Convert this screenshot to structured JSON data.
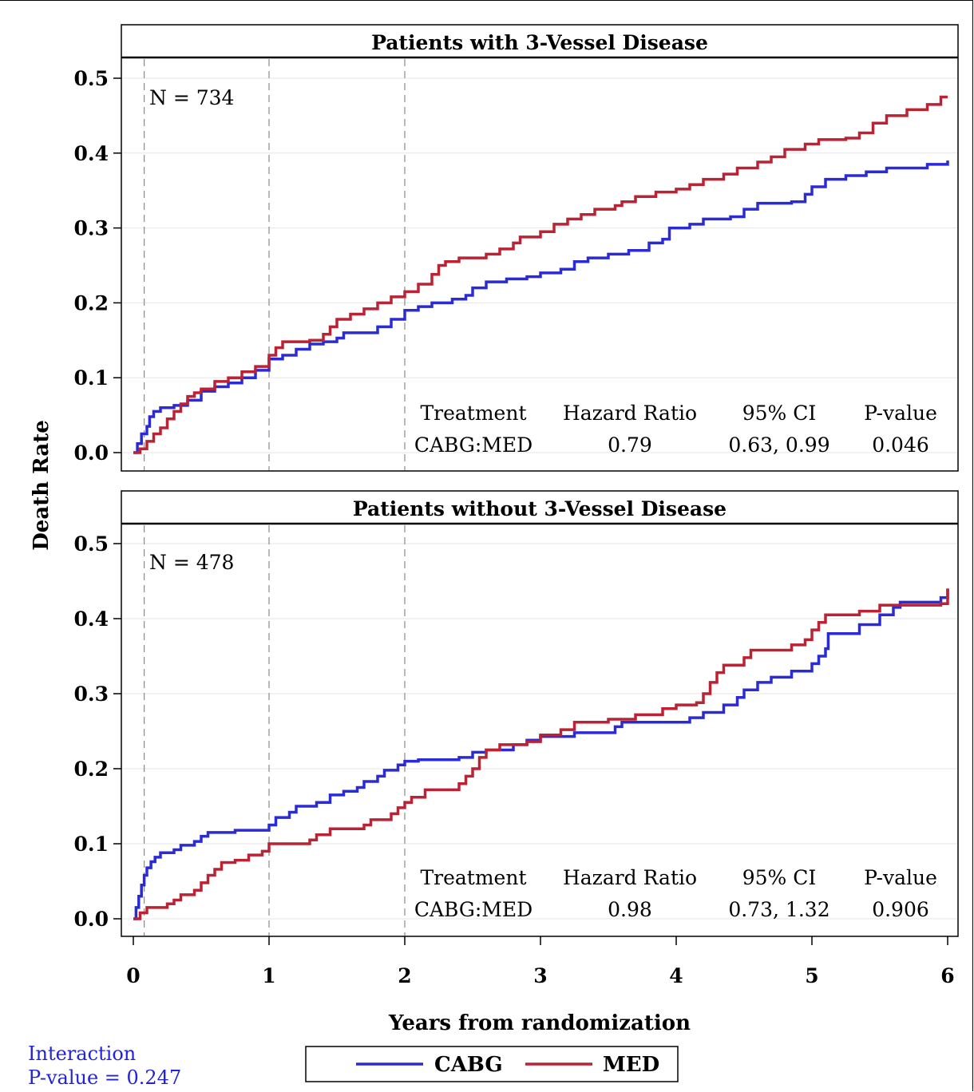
{
  "chart_data": [
    {
      "type": "line",
      "title": "Patients with 3-Vessel Disease",
      "xlabel": "Years from randomization",
      "ylabel": "Death Rate",
      "xlim": [
        0,
        6
      ],
      "ylim": [
        0,
        0.52
      ],
      "x_ticks": [
        "0",
        "1",
        "2",
        "3",
        "4",
        "5",
        "6"
      ],
      "y_ticks": [
        "0.0",
        "0.1",
        "0.2",
        "0.3",
        "0.4",
        "0.5"
      ],
      "reference_lines_x": [
        0.08,
        1,
        2
      ],
      "n_label": "N = 734",
      "stats_table": {
        "headers": [
          "Treatment",
          "Hazard Ratio",
          "95% CI",
          "P-value"
        ],
        "row": [
          "CABG:MED",
          "0.79",
          "0.63, 0.99",
          "0.046"
        ]
      },
      "series": [
        {
          "name": "CABG",
          "color": "#2b2bd6",
          "points": [
            [
              0,
              0.0
            ],
            [
              0.03,
              0.012
            ],
            [
              0.06,
              0.025
            ],
            [
              0.1,
              0.035
            ],
            [
              0.12,
              0.048
            ],
            [
              0.15,
              0.055
            ],
            [
              0.2,
              0.06
            ],
            [
              0.3,
              0.063
            ],
            [
              0.4,
              0.07
            ],
            [
              0.5,
              0.082
            ],
            [
              0.6,
              0.088
            ],
            [
              0.7,
              0.093
            ],
            [
              0.8,
              0.1
            ],
            [
              0.9,
              0.11
            ],
            [
              1.0,
              0.125
            ],
            [
              1.1,
              0.13
            ],
            [
              1.2,
              0.138
            ],
            [
              1.3,
              0.145
            ],
            [
              1.4,
              0.148
            ],
            [
              1.5,
              0.153
            ],
            [
              1.55,
              0.16
            ],
            [
              1.7,
              0.16
            ],
            [
              1.8,
              0.168
            ],
            [
              1.9,
              0.178
            ],
            [
              2.0,
              0.19
            ],
            [
              2.1,
              0.195
            ],
            [
              2.2,
              0.2
            ],
            [
              2.35,
              0.205
            ],
            [
              2.45,
              0.21
            ],
            [
              2.5,
              0.22
            ],
            [
              2.6,
              0.228
            ],
            [
              2.75,
              0.232
            ],
            [
              2.9,
              0.235
            ],
            [
              3.0,
              0.24
            ],
            [
              3.15,
              0.245
            ],
            [
              3.25,
              0.255
            ],
            [
              3.35,
              0.26
            ],
            [
              3.5,
              0.265
            ],
            [
              3.65,
              0.27
            ],
            [
              3.8,
              0.28
            ],
            [
              3.9,
              0.285
            ],
            [
              3.95,
              0.3
            ],
            [
              4.1,
              0.305
            ],
            [
              4.2,
              0.312
            ],
            [
              4.4,
              0.315
            ],
            [
              4.5,
              0.325
            ],
            [
              4.6,
              0.333
            ],
            [
              4.85,
              0.335
            ],
            [
              4.95,
              0.345
            ],
            [
              5.0,
              0.355
            ],
            [
              5.1,
              0.365
            ],
            [
              5.25,
              0.37
            ],
            [
              5.4,
              0.375
            ],
            [
              5.55,
              0.38
            ],
            [
              5.85,
              0.385
            ],
            [
              6.0,
              0.39
            ]
          ]
        },
        {
          "name": "MED",
          "color": "#bb2233",
          "points": [
            [
              0,
              0.0
            ],
            [
              0.05,
              0.005
            ],
            [
              0.1,
              0.015
            ],
            [
              0.15,
              0.025
            ],
            [
              0.2,
              0.033
            ],
            [
              0.25,
              0.045
            ],
            [
              0.3,
              0.055
            ],
            [
              0.35,
              0.065
            ],
            [
              0.4,
              0.075
            ],
            [
              0.45,
              0.08
            ],
            [
              0.5,
              0.085
            ],
            [
              0.6,
              0.095
            ],
            [
              0.7,
              0.1
            ],
            [
              0.8,
              0.108
            ],
            [
              0.9,
              0.115
            ],
            [
              1.0,
              0.13
            ],
            [
              1.05,
              0.14
            ],
            [
              1.1,
              0.148
            ],
            [
              1.3,
              0.15
            ],
            [
              1.4,
              0.158
            ],
            [
              1.45,
              0.168
            ],
            [
              1.5,
              0.178
            ],
            [
              1.6,
              0.185
            ],
            [
              1.7,
              0.192
            ],
            [
              1.8,
              0.2
            ],
            [
              1.9,
              0.208
            ],
            [
              2.0,
              0.215
            ],
            [
              2.1,
              0.225
            ],
            [
              2.2,
              0.238
            ],
            [
              2.25,
              0.25
            ],
            [
              2.3,
              0.255
            ],
            [
              2.4,
              0.26
            ],
            [
              2.6,
              0.265
            ],
            [
              2.7,
              0.272
            ],
            [
              2.8,
              0.28
            ],
            [
              2.85,
              0.288
            ],
            [
              3.0,
              0.295
            ],
            [
              3.1,
              0.305
            ],
            [
              3.2,
              0.312
            ],
            [
              3.3,
              0.318
            ],
            [
              3.4,
              0.325
            ],
            [
              3.55,
              0.33
            ],
            [
              3.6,
              0.335
            ],
            [
              3.7,
              0.342
            ],
            [
              3.85,
              0.348
            ],
            [
              4.0,
              0.352
            ],
            [
              4.1,
              0.358
            ],
            [
              4.2,
              0.365
            ],
            [
              4.35,
              0.372
            ],
            [
              4.45,
              0.38
            ],
            [
              4.6,
              0.388
            ],
            [
              4.7,
              0.395
            ],
            [
              4.8,
              0.405
            ],
            [
              4.95,
              0.412
            ],
            [
              5.05,
              0.418
            ],
            [
              5.25,
              0.42
            ],
            [
              5.35,
              0.427
            ],
            [
              5.45,
              0.44
            ],
            [
              5.55,
              0.45
            ],
            [
              5.7,
              0.458
            ],
            [
              5.85,
              0.465
            ],
            [
              5.95,
              0.475
            ],
            [
              6.0,
              0.475
            ]
          ]
        }
      ]
    },
    {
      "type": "line",
      "title": "Patients without 3-Vessel Disease",
      "xlabel": "Years from randomization",
      "ylabel": "Death Rate",
      "xlim": [
        0,
        6
      ],
      "ylim": [
        0,
        0.52
      ],
      "x_ticks": [
        "0",
        "1",
        "2",
        "3",
        "4",
        "5",
        "6"
      ],
      "y_ticks": [
        "0.0",
        "0.1",
        "0.2",
        "0.3",
        "0.4",
        "0.5"
      ],
      "reference_lines_x": [
        0.08,
        1,
        2
      ],
      "n_label": "N = 478",
      "stats_table": {
        "headers": [
          "Treatment",
          "Hazard Ratio",
          "95% CI",
          "P-value"
        ],
        "row": [
          "CABG:MED",
          "0.98",
          "0.73, 1.32",
          "0.906"
        ]
      },
      "series": [
        {
          "name": "CABG",
          "color": "#2b2bd6",
          "points": [
            [
              0,
              0.0
            ],
            [
              0.02,
              0.015
            ],
            [
              0.04,
              0.03
            ],
            [
              0.06,
              0.045
            ],
            [
              0.08,
              0.058
            ],
            [
              0.1,
              0.068
            ],
            [
              0.13,
              0.076
            ],
            [
              0.16,
              0.082
            ],
            [
              0.2,
              0.088
            ],
            [
              0.3,
              0.092
            ],
            [
              0.35,
              0.098
            ],
            [
              0.45,
              0.103
            ],
            [
              0.5,
              0.11
            ],
            [
              0.55,
              0.115
            ],
            [
              0.75,
              0.118
            ],
            [
              1.0,
              0.125
            ],
            [
              1.05,
              0.135
            ],
            [
              1.15,
              0.142
            ],
            [
              1.2,
              0.15
            ],
            [
              1.35,
              0.155
            ],
            [
              1.45,
              0.165
            ],
            [
              1.55,
              0.17
            ],
            [
              1.65,
              0.175
            ],
            [
              1.7,
              0.183
            ],
            [
              1.8,
              0.19
            ],
            [
              1.85,
              0.198
            ],
            [
              1.95,
              0.205
            ],
            [
              2.0,
              0.21
            ],
            [
              2.1,
              0.212
            ],
            [
              2.4,
              0.215
            ],
            [
              2.5,
              0.222
            ],
            [
              2.6,
              0.225
            ],
            [
              2.8,
              0.232
            ],
            [
              2.9,
              0.238
            ],
            [
              3.0,
              0.243
            ],
            [
              3.25,
              0.248
            ],
            [
              3.55,
              0.256
            ],
            [
              3.6,
              0.262
            ],
            [
              4.1,
              0.268
            ],
            [
              4.2,
              0.275
            ],
            [
              4.35,
              0.285
            ],
            [
              4.45,
              0.295
            ],
            [
              4.5,
              0.305
            ],
            [
              4.6,
              0.315
            ],
            [
              4.7,
              0.322
            ],
            [
              4.85,
              0.33
            ],
            [
              5.0,
              0.34
            ],
            [
              5.05,
              0.35
            ],
            [
              5.1,
              0.36
            ],
            [
              5.12,
              0.38
            ],
            [
              5.35,
              0.392
            ],
            [
              5.5,
              0.405
            ],
            [
              5.6,
              0.415
            ],
            [
              5.65,
              0.422
            ],
            [
              5.95,
              0.428
            ],
            [
              6.0,
              0.44
            ]
          ]
        },
        {
          "name": "MED",
          "color": "#bb2233",
          "points": [
            [
              0,
              0.0
            ],
            [
              0.05,
              0.008
            ],
            [
              0.1,
              0.015
            ],
            [
              0.25,
              0.02
            ],
            [
              0.3,
              0.025
            ],
            [
              0.35,
              0.032
            ],
            [
              0.45,
              0.038
            ],
            [
              0.5,
              0.048
            ],
            [
              0.55,
              0.058
            ],
            [
              0.6,
              0.066
            ],
            [
              0.65,
              0.075
            ],
            [
              0.75,
              0.078
            ],
            [
              0.85,
              0.085
            ],
            [
              0.95,
              0.09
            ],
            [
              1.0,
              0.1
            ],
            [
              1.3,
              0.105
            ],
            [
              1.35,
              0.112
            ],
            [
              1.45,
              0.12
            ],
            [
              1.7,
              0.125
            ],
            [
              1.75,
              0.132
            ],
            [
              1.9,
              0.14
            ],
            [
              1.95,
              0.148
            ],
            [
              2.0,
              0.155
            ],
            [
              2.05,
              0.162
            ],
            [
              2.15,
              0.172
            ],
            [
              2.4,
              0.18
            ],
            [
              2.45,
              0.19
            ],
            [
              2.5,
              0.2
            ],
            [
              2.55,
              0.215
            ],
            [
              2.6,
              0.225
            ],
            [
              2.7,
              0.232
            ],
            [
              2.9,
              0.236
            ],
            [
              3.0,
              0.245
            ],
            [
              3.15,
              0.252
            ],
            [
              3.25,
              0.262
            ],
            [
              3.5,
              0.266
            ],
            [
              3.7,
              0.272
            ],
            [
              3.9,
              0.28
            ],
            [
              4.0,
              0.285
            ],
            [
              4.15,
              0.288
            ],
            [
              4.2,
              0.3
            ],
            [
              4.25,
              0.315
            ],
            [
              4.3,
              0.328
            ],
            [
              4.35,
              0.338
            ],
            [
              4.5,
              0.348
            ],
            [
              4.55,
              0.358
            ],
            [
              4.85,
              0.365
            ],
            [
              4.95,
              0.372
            ],
            [
              5.0,
              0.385
            ],
            [
              5.05,
              0.395
            ],
            [
              5.1,
              0.405
            ],
            [
              5.35,
              0.41
            ],
            [
              5.5,
              0.418
            ],
            [
              5.95,
              0.42
            ],
            [
              6.0,
              0.44
            ]
          ]
        }
      ]
    }
  ],
  "legend": {
    "items": [
      "CABG",
      "MED"
    ]
  },
  "interaction": {
    "line1": "Interaction",
    "line2": "P-value = 0.247"
  }
}
